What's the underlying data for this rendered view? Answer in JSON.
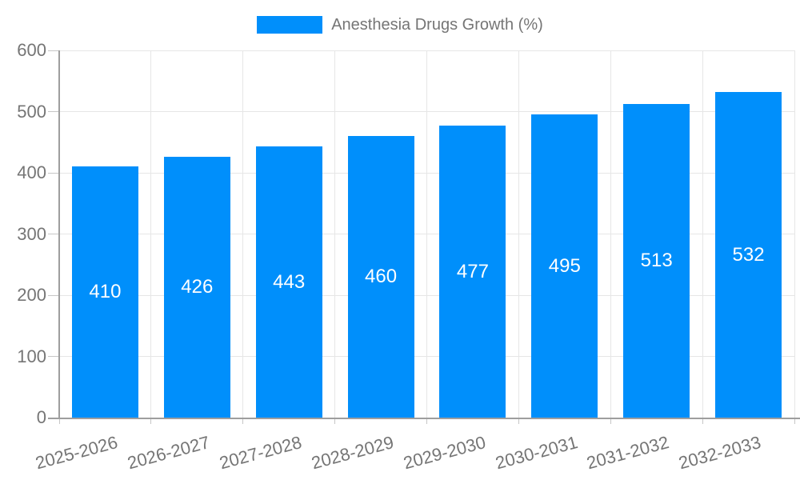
{
  "chart": {
    "legend": {
      "label": "Anesthesia Drugs Growth (%)",
      "swatch_color": "#008FFB",
      "position": "top-center"
    }
  },
  "chart_data": {
    "type": "bar",
    "title": "",
    "xlabel": "",
    "ylabel": "",
    "categories": [
      "2025-2026",
      "2026-2027",
      "2027-2028",
      "2028-2029",
      "2029-2030",
      "2030-2031",
      "2031-2032",
      "2032-2033"
    ],
    "series": [
      {
        "name": "Anesthesia Drugs Growth (%)",
        "values": [
          410,
          426,
          443,
          460,
          477,
          495,
          513,
          532
        ],
        "color": "#008FFB"
      }
    ],
    "ylim": [
      0,
      600
    ],
    "yticks": [
      0,
      100,
      200,
      300,
      400,
      500,
      600
    ],
    "grid": true,
    "legend_position": "top",
    "bar_labels": "inside-center",
    "bar_label_color": "#ffffff",
    "x_tick_rotation_deg": -15
  },
  "colors": {
    "background": "#ffffff",
    "bar": "#008FFB",
    "grid": "#e6e6e6",
    "axis_line": "#9e9e9e",
    "tick": "#c6c6c6",
    "axis_text": "#757575",
    "legend_text": "#757575"
  }
}
